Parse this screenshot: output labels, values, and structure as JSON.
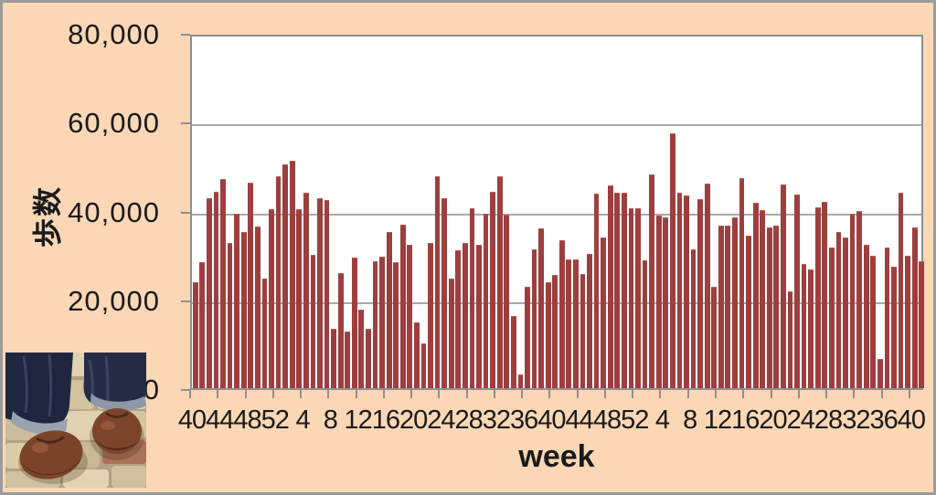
{
  "chart_data": {
    "type": "bar",
    "title": "",
    "ylabel": "歩数",
    "xlabel": "week",
    "ylim": [
      0,
      80000
    ],
    "grid": true,
    "legend": false,
    "bar_color": "#9d3f3e",
    "background_color": "#fbd7b5",
    "plot_background": "#ffffff",
    "axis_color": "#8f8f8f",
    "gridline_color": "#a9a9a9",
    "yticks": [
      {
        "value": 0,
        "label": "0"
      },
      {
        "value": 20000,
        "label": "20,000"
      },
      {
        "value": 40000,
        "label": "40,000"
      },
      {
        "value": 60000,
        "label": "60,000"
      },
      {
        "value": 80000,
        "label": "80,000"
      }
    ],
    "x_tick_labels": [
      "40",
      "44",
      "48",
      "52",
      "4",
      "8",
      "12",
      "16",
      "20",
      "24",
      "28",
      "32",
      "36",
      "40",
      "44",
      "48",
      "52",
      "4",
      "8",
      "12",
      "16",
      "20",
      "24",
      "28",
      "32",
      "36",
      "40"
    ],
    "x_label_every": 4,
    "categories": [
      40,
      41,
      42,
      43,
      44,
      45,
      46,
      47,
      48,
      49,
      50,
      51,
      52,
      1,
      2,
      3,
      4,
      5,
      6,
      7,
      8,
      9,
      10,
      11,
      12,
      13,
      14,
      15,
      16,
      17,
      18,
      19,
      20,
      21,
      22,
      23,
      24,
      25,
      26,
      27,
      28,
      29,
      30,
      31,
      32,
      33,
      34,
      35,
      36,
      37,
      38,
      39,
      40,
      41,
      42,
      43,
      44,
      45,
      46,
      47,
      48,
      49,
      50,
      51,
      52,
      1,
      2,
      3,
      4,
      5,
      6,
      7,
      8,
      9,
      10,
      11,
      12,
      13,
      14,
      15,
      16,
      17,
      18,
      19,
      20,
      21,
      22,
      23,
      24,
      25,
      26,
      27,
      28,
      29,
      30,
      31,
      32,
      33,
      34,
      35,
      36,
      37,
      38,
      39,
      40,
      41
    ],
    "values": [
      23900,
      28400,
      42800,
      44200,
      47100,
      32800,
      39200,
      35100,
      46300,
      36400,
      24600,
      40300,
      47700,
      50400,
      51300,
      40300,
      44100,
      30100,
      42700,
      42400,
      13300,
      26000,
      12800,
      29500,
      17600,
      13300,
      28500,
      29700,
      35100,
      28400,
      36900,
      32300,
      14800,
      10000,
      32800,
      47700,
      42700,
      24600,
      31000,
      32800,
      40500,
      32300,
      39200,
      44200,
      47700,
      39000,
      16300,
      3100,
      22800,
      31200,
      35900,
      23900,
      25500,
      33300,
      29100,
      29100,
      25800,
      30300,
      43800,
      33900,
      45600,
      44100,
      44100,
      40600,
      40600,
      28700,
      48100,
      38800,
      38500,
      57400,
      44000,
      43300,
      31200,
      42500,
      46000,
      22900,
      36700,
      36700,
      38400,
      47300,
      34400,
      41700,
      40100,
      36200,
      36700,
      45800,
      21900,
      43500,
      28000,
      26700,
      40800,
      41900,
      31600,
      35100,
      34000,
      39200,
      39900,
      32300,
      29900,
      6600,
      31700,
      27400,
      44000,
      29800,
      36200,
      28500
    ]
  },
  "photo": {
    "alt": "Photo of a person's feet in dark jeans and brown leather shoes standing on beige cobblestone pavement"
  }
}
